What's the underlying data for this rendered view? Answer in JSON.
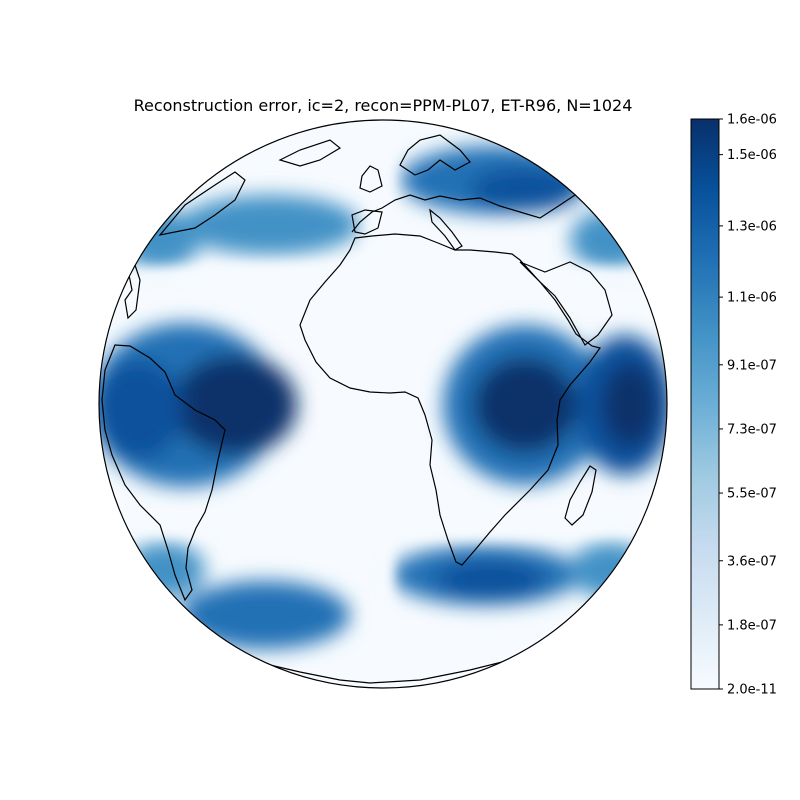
{
  "chart_data": {
    "type": "heatmap",
    "projection": "orthographic globe",
    "title": "Reconstruction error, ic=2, recon=PPM-PL07, ET-R96, N=1024",
    "xlabel": "",
    "ylabel": "",
    "colormap": "Blues",
    "colorbar": {
      "min": 2e-11,
      "max": 1.6e-06,
      "tick_labels": [
        "2.0e-11",
        "1.8e-07",
        "3.6e-07",
        "5.5e-07",
        "7.3e-07",
        "9.1e-07",
        "1.1e-06",
        "1.3e-06",
        "1.5e-06",
        "1.6e-06"
      ],
      "tick_values": [
        2e-11,
        1.8e-07,
        3.6e-07,
        5.5e-07,
        7.3e-07,
        9.1e-07,
        1.1e-06,
        1.3e-06,
        1.5e-06,
        1.6e-06
      ],
      "colors": [
        "#f7fbff",
        "#deebf7",
        "#c6dbef",
        "#9ecae1",
        "#6baed6",
        "#4292c6",
        "#2171b5",
        "#08519c",
        "#08306b"
      ]
    },
    "features": [
      "coastlines"
    ],
    "error_maxima": [
      {
        "region": "west over South America",
        "value": 1.6e-06
      },
      {
        "region": "central over eastern Africa",
        "value": 1.6e-06
      },
      {
        "region": "east over Indian Ocean",
        "value": 1.6e-06
      }
    ],
    "low_error_bands": [
      "central meridian",
      "two latitude bands at the panel boundaries"
    ]
  }
}
